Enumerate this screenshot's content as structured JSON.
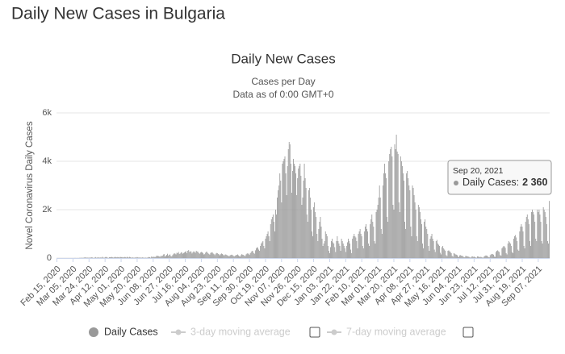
{
  "page_title": "Daily New Cases in Bulgaria",
  "chart_data": {
    "type": "bar",
    "title": "Daily New Cases",
    "subtitle": "Cases per Day",
    "subtitle2": "Data as of 0:00 GMT+0",
    "y_label": "Novel Coronavirus Daily Cases",
    "ylim": [
      0,
      6000
    ],
    "yticks": [
      0,
      {
        "value": 2000,
        "label": "2k"
      },
      {
        "value": 4000,
        "label": "4k"
      },
      {
        "value": 6000,
        "label": "6k"
      }
    ],
    "grid": true,
    "categories": [
      "Feb 15, 2020",
      null,
      null,
      null,
      null,
      null,
      null,
      null,
      null,
      null,
      null,
      null,
      null,
      null,
      null,
      null,
      null,
      null,
      null,
      "Mar 05, 2020",
      null,
      null,
      null,
      null,
      null,
      null,
      null,
      null,
      null,
      null,
      null,
      null,
      null,
      null,
      null,
      null,
      null,
      null,
      "Mar 24, 2020",
      null,
      null,
      null,
      null,
      null,
      null,
      null,
      null,
      null,
      null,
      null,
      null,
      null,
      null,
      null,
      null,
      null,
      null,
      "Apr 12, 2020",
      null,
      null,
      null,
      null,
      null,
      null,
      null,
      null,
      null,
      null,
      null,
      null,
      null,
      null,
      null,
      null,
      null,
      null,
      "May 01, 2020",
      null,
      null,
      null,
      null,
      null,
      null,
      null,
      null,
      null,
      null,
      null,
      null,
      null,
      null,
      null,
      null,
      null,
      null,
      "May 20, 2020",
      null,
      null,
      null,
      null,
      null,
      null,
      null,
      null,
      null,
      null,
      null,
      null,
      null,
      null,
      null,
      null,
      null,
      null,
      "Jun 08, 2020",
      null,
      null,
      null,
      null,
      null,
      null,
      null,
      null,
      null,
      null,
      null,
      null,
      null,
      null,
      null,
      null,
      null,
      null,
      "Jun 27, 2020",
      null,
      null,
      null,
      null,
      null,
      null,
      null,
      null,
      null,
      null,
      null,
      null,
      null,
      null,
      null,
      null,
      null,
      null,
      "Jul 16, 2020",
      null,
      null,
      null,
      null,
      null,
      null,
      null,
      null,
      null,
      null,
      null,
      null,
      null,
      null,
      null,
      null,
      null,
      null,
      "Aug 04, 2020",
      null,
      null,
      null,
      null,
      null,
      null,
      null,
      null,
      null,
      null,
      null,
      null,
      null,
      null,
      null,
      null,
      null,
      null,
      "Aug 23, 2020",
      null,
      null,
      null,
      null,
      null,
      null,
      null,
      null,
      null,
      null,
      null,
      null,
      null,
      null,
      null,
      null,
      null,
      null,
      "Sep 11, 2020",
      null,
      null,
      null,
      null,
      null,
      null,
      null,
      null,
      null,
      null,
      null,
      null,
      null,
      null,
      null,
      null,
      null,
      null,
      "Sep 30, 2020",
      null,
      null,
      null,
      null,
      null,
      null,
      null,
      null,
      null,
      null,
      null,
      null,
      null,
      null,
      null,
      null,
      null,
      null,
      "Oct 19, 2020",
      null,
      null,
      null,
      null,
      null,
      null,
      null,
      null,
      null,
      null,
      null,
      null,
      null,
      null,
      null,
      null,
      null,
      null,
      "Nov 07, 2020",
      null,
      null,
      null,
      null,
      null,
      null,
      null,
      null,
      null,
      null,
      null,
      null,
      null,
      null,
      null,
      null,
      null,
      null,
      "Nov 26, 2020",
      null,
      null,
      null,
      null,
      null,
      null,
      null,
      null,
      null,
      null,
      null,
      null,
      null,
      null,
      null,
      null,
      null,
      null,
      "Dec 15, 2020",
      null,
      null,
      null,
      null,
      null,
      null,
      null,
      null,
      null,
      null,
      null,
      null,
      null,
      null,
      null,
      null,
      null,
      null,
      "Jan 03, 2021",
      null,
      null,
      null,
      null,
      null,
      null,
      null,
      null,
      null,
      null,
      null,
      null,
      null,
      null,
      null,
      null,
      null,
      null,
      "Jan 22, 2021",
      null,
      null,
      null,
      null,
      null,
      null,
      null,
      null,
      null,
      null,
      null,
      null,
      null,
      null,
      null,
      null,
      null,
      null,
      "Feb 10, 2021",
      null,
      null,
      null,
      null,
      null,
      null,
      null,
      null,
      null,
      null,
      null,
      null,
      null,
      null,
      null,
      null,
      null,
      null,
      "Mar 01, 2021",
      null,
      null,
      null,
      null,
      null,
      null,
      null,
      null,
      null,
      null,
      null,
      null,
      null,
      null,
      null,
      null,
      null,
      null,
      "Mar 20, 2021",
      null,
      null,
      null,
      null,
      null,
      null,
      null,
      null,
      null,
      null,
      null,
      null,
      null,
      null,
      null,
      null,
      null,
      null,
      "Apr 08, 2021",
      null,
      null,
      null,
      null,
      null,
      null,
      null,
      null,
      null,
      null,
      null,
      null,
      null,
      null,
      null,
      null,
      null,
      null,
      "Apr 27, 2021",
      null,
      null,
      null,
      null,
      null,
      null,
      null,
      null,
      null,
      null,
      null,
      null,
      null,
      null,
      null,
      null,
      null,
      null,
      "May 16, 2021",
      null,
      null,
      null,
      null,
      null,
      null,
      null,
      null,
      null,
      null,
      null,
      null,
      null,
      null,
      null,
      null,
      null,
      null,
      "Jun 04, 2021",
      null,
      null,
      null,
      null,
      null,
      null,
      null,
      null,
      null,
      null,
      null,
      null,
      null,
      null,
      null,
      null,
      null,
      null,
      "Jun 23, 2021",
      null,
      null,
      null,
      null,
      null,
      null,
      null,
      null,
      null,
      null,
      null,
      null,
      null,
      null,
      null,
      null,
      null,
      null,
      "Jul 12, 2021",
      null,
      null,
      null,
      null,
      null,
      null,
      null,
      null,
      null,
      null,
      null,
      null,
      null,
      null,
      null,
      null,
      null,
      null,
      "Jul 31, 2021",
      null,
      null,
      null,
      null,
      null,
      null,
      null,
      null,
      null,
      null,
      null,
      null,
      null,
      null,
      null,
      null,
      null,
      null,
      "Aug 19, 2021",
      null,
      null,
      null,
      null,
      null,
      null,
      null,
      null,
      null,
      null,
      null,
      null,
      null,
      null,
      null,
      null,
      null,
      null,
      "Sep 07, 2021",
      null,
      null,
      null,
      null,
      null,
      null,
      null,
      null,
      null,
      null,
      null,
      null,
      null
    ],
    "series": [
      {
        "name": "Daily Cases",
        "color": "#999999",
        "values": [
          0,
          0,
          0,
          0,
          0,
          0,
          0,
          0,
          0,
          0,
          0,
          0,
          0,
          0,
          0,
          0,
          0,
          0,
          0,
          0,
          0,
          2,
          2,
          0,
          1,
          1,
          1,
          8,
          8,
          10,
          11,
          7,
          17,
          27,
          24,
          15,
          19,
          15,
          17,
          17,
          21,
          27,
          22,
          0,
          18,
          13,
          40,
          10,
          22,
          27,
          20,
          16,
          26,
          15,
          50,
          18,
          5,
          40,
          45,
          40,
          13,
          4,
          35,
          35,
          28,
          45,
          27,
          20,
          30,
          49,
          37,
          28,
          43,
          35,
          20,
          48,
          37,
          41,
          23,
          30,
          45,
          40,
          20,
          50,
          30,
          19,
          47,
          31,
          16,
          20,
          25,
          15,
          15,
          27,
          18,
          43,
          26,
          16,
          24,
          19,
          11,
          29,
          20,
          14,
          12,
          18,
          10,
          17,
          23,
          42,
          35,
          12,
          61,
          48,
          45,
          56,
          40,
          50,
          94,
          90,
          86,
          70,
          50,
          94,
          80,
          100,
          150,
          160,
          55,
          100,
          128,
          177,
          100,
          130,
          150,
          84,
          70,
          120,
          160,
          200,
          182,
          150,
          220,
          200,
          250,
          170,
          190,
          240,
          225,
          180,
          210,
          230,
          260,
          280,
          200,
          300,
          330,
          250,
          280,
          270,
          190,
          240,
          280,
          250,
          220,
          300,
          270,
          260,
          200,
          180,
          230,
          250,
          240,
          200,
          150,
          160,
          220,
          260,
          250,
          200,
          170,
          140,
          210,
          230,
          240,
          190,
          160,
          120,
          180,
          210,
          200,
          170,
          150,
          110,
          160,
          190,
          170,
          140,
          100,
          140,
          150,
          130,
          110,
          90,
          70,
          110,
          130,
          140,
          120,
          90,
          70,
          100,
          120,
          130,
          150,
          110,
          80,
          60,
          120,
          160,
          140,
          130,
          100,
          80,
          150,
          180,
          200,
          170,
          130,
          200,
          250,
          300,
          280,
          200,
          180,
          320,
          400,
          450,
          420,
          350,
          300,
          500,
          600,
          650,
          700,
          500,
          400,
          800,
          900,
          1000,
          1100,
          900,
          700,
          1400,
          1600,
          1700,
          1800,
          1500,
          1100,
          2000,
          1800,
          2500,
          2800,
          3000,
          3500,
          3200,
          2300,
          3900,
          4000,
          4100,
          4200,
          3500,
          2600,
          3800,
          4500,
          4800,
          4700,
          3900,
          2700,
          3600,
          4100,
          3900,
          3800,
          3500,
          2600,
          3300,
          3700,
          3800,
          3900,
          3400,
          2200,
          2500,
          3200,
          3900,
          3300,
          2900,
          1800,
          1500,
          2800,
          2900,
          2500,
          2000,
          1100,
          900,
          2100,
          2300,
          1900,
          1700,
          1000,
          700,
          1200,
          1500,
          1700,
          1300,
          800,
          500,
          600,
          700,
          1100,
          1000,
          900,
          500,
          300,
          200,
          450,
          700,
          800,
          650,
          600,
          450,
          250,
          700,
          900,
          700,
          600,
          500,
          300,
          800,
          700,
          600,
          500,
          400,
          250,
          500,
          650,
          800,
          700,
          600,
          350,
          200,
          800,
          900,
          1000,
          900,
          850,
          700,
          400,
          1000,
          1100,
          1200,
          1000,
          900,
          500,
          400,
          1100,
          1300,
          1400,
          1200,
          1100,
          600,
          500,
          1400,
          1600,
          1800,
          1500,
          1300,
          700,
          600,
          1900,
          2000,
          2200,
          2500,
          3000,
          2500,
          1200,
          1000,
          3000,
          3500,
          3900,
          3500,
          3300,
          1700,
          1500,
          4000,
          4300,
          4500,
          4600,
          4200,
          2200,
          2000,
          4700,
          4500,
          5100,
          4400,
          4300,
          2300,
          1900,
          4200,
          4000,
          3800,
          3500,
          3200,
          1500,
          1200,
          3500,
          3600,
          3300,
          3000,
          2800,
          1300,
          900,
          3000,
          2900,
          2600,
          2300,
          2000,
          900,
          700,
          2200,
          2100,
          1900,
          1600,
          1400,
          600,
          400,
          1500,
          1600,
          1300,
          1200,
          1000,
          500,
          300,
          800,
          900,
          1000,
          800,
          700,
          350,
          250,
          700,
          750,
          600,
          550,
          500,
          220,
          150,
          450,
          500,
          400,
          350,
          300,
          120,
          80,
          300,
          320,
          280,
          250,
          200,
          90,
          60,
          200,
          180,
          150,
          140,
          120,
          60,
          40,
          110,
          120,
          100,
          90,
          80,
          40,
          30,
          90,
          80,
          70,
          60,
          50,
          25,
          20,
          60,
          70,
          50,
          60,
          40,
          20,
          15,
          70,
          60,
          50,
          40,
          50,
          40,
          20,
          20,
          70,
          90,
          110,
          100,
          80,
          40,
          30,
          120,
          150,
          170,
          160,
          140,
          60,
          50,
          250,
          300,
          320,
          280,
          250,
          120,
          100,
          400,
          450,
          500,
          480,
          420,
          200,
          150,
          600,
          700,
          650,
          600,
          500,
          250,
          200,
          800,
          900,
          950,
          850,
          700,
          350,
          300,
          1100,
          1300,
          1400,
          1300,
          1100,
          500,
          400,
          1500,
          1700,
          1800,
          1600,
          1400,
          700,
          500,
          1900,
          2000,
          1900,
          1800,
          1500,
          800,
          700,
          2000,
          1900,
          2000,
          1800,
          1500,
          700,
          600,
          2100,
          2000,
          1900,
          1700,
          1400,
          700,
          600,
          2360
        ]
      }
    ],
    "inactive_series": [
      {
        "name": "3-day moving average",
        "color": "#cccccc"
      },
      {
        "name": "7-day moving average",
        "color": "#cccccc"
      }
    ],
    "tooltip": {
      "date": "Sep 20, 2021",
      "series_label": "Daily Cases:",
      "value": "2 360"
    }
  }
}
